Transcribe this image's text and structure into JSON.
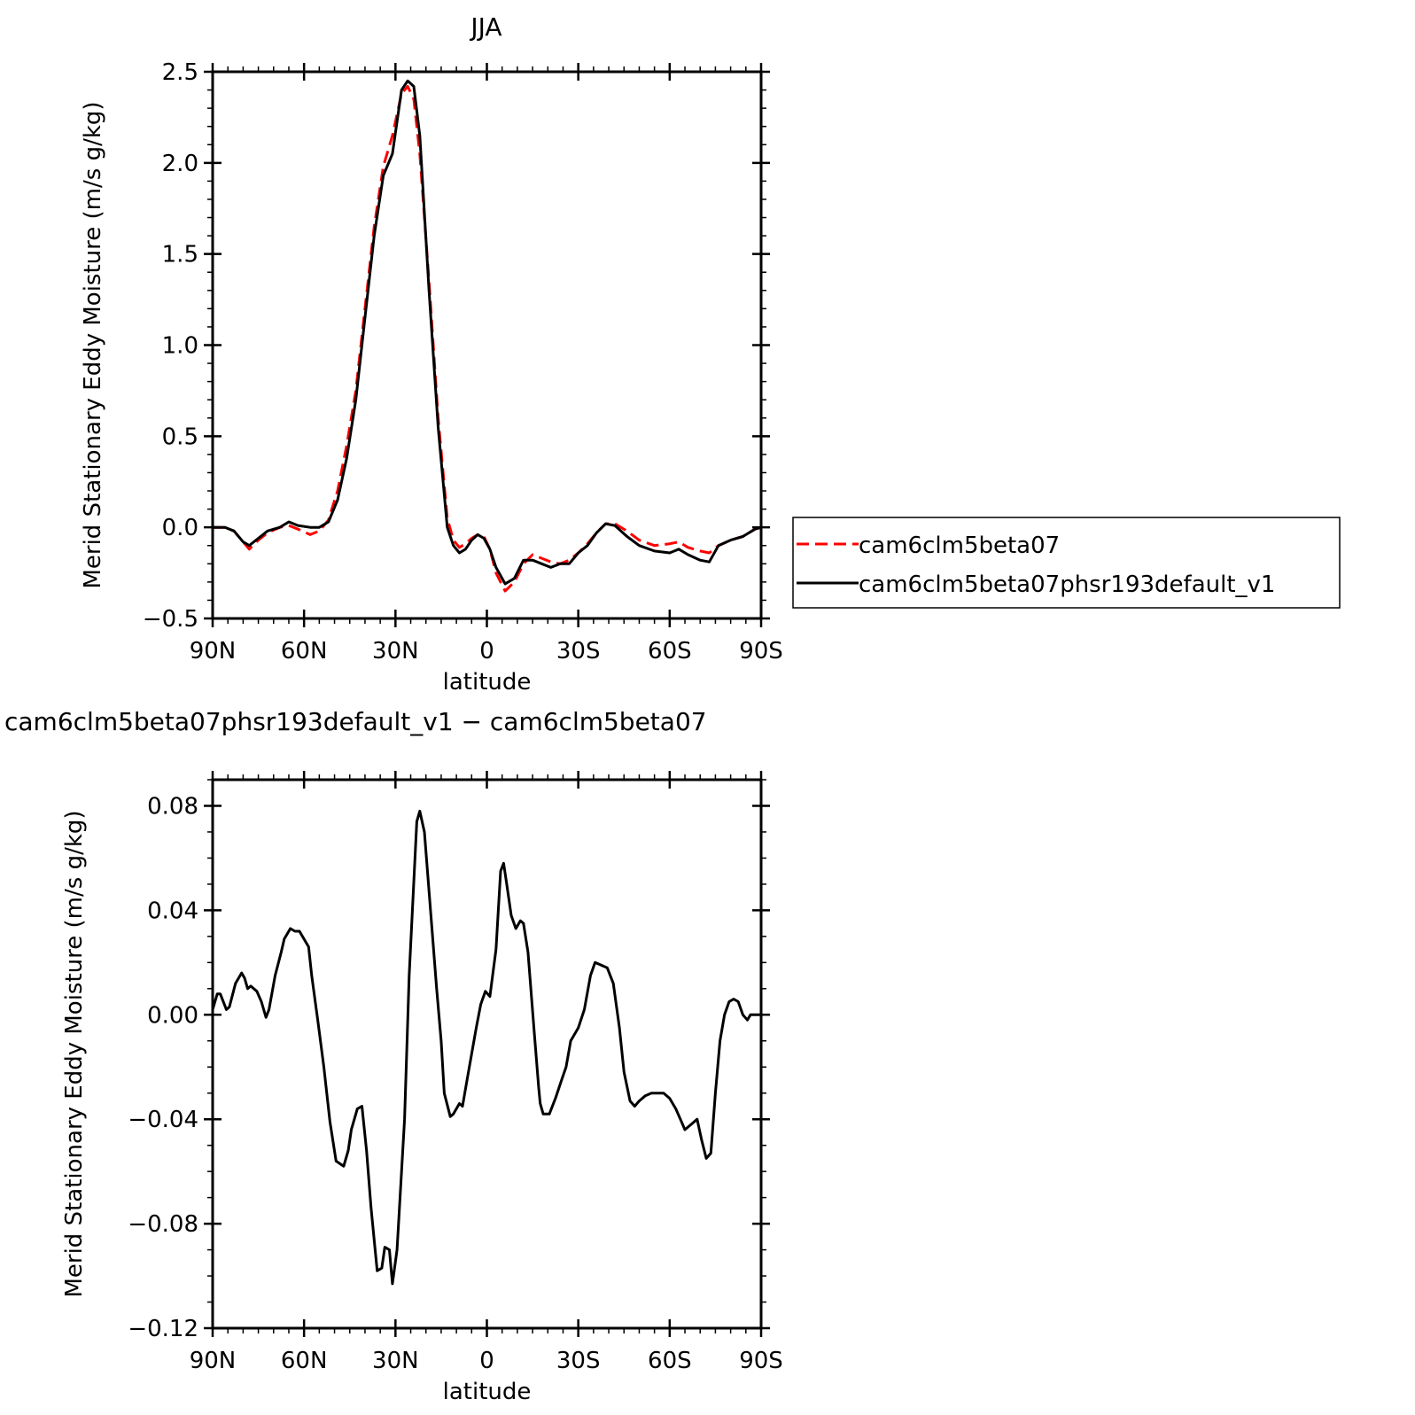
{
  "chart_data": [
    {
      "type": "line",
      "title": "JJA",
      "xlabel": "latitude",
      "ylabel": "Merid Stationary Eddy Moisture (m/s g/kg)",
      "xlim": [
        90,
        -90
      ],
      "ylim": [
        -0.5,
        2.5
      ],
      "x_ticks": [
        {
          "value": 90,
          "label": "90N"
        },
        {
          "value": 60,
          "label": "60N"
        },
        {
          "value": 30,
          "label": "30N"
        },
        {
          "value": 0,
          "label": "0"
        },
        {
          "value": -30,
          "label": "30S"
        },
        {
          "value": -60,
          "label": "60S"
        },
        {
          "value": -90,
          "label": "90S"
        }
      ],
      "y_ticks": [
        {
          "value": 2.5,
          "label": "2.5"
        },
        {
          "value": 2.0,
          "label": "2.0"
        },
        {
          "value": 1.5,
          "label": "1.5"
        },
        {
          "value": 1.0,
          "label": "1.0"
        },
        {
          "value": 0.5,
          "label": "0.5"
        },
        {
          "value": 0.0,
          "label": "0.0"
        },
        {
          "value": -0.5,
          "label": "−0.5"
        }
      ],
      "legend_position": "right",
      "series": [
        {
          "name": "cam6clm5beta07",
          "color": "#ff0000",
          "dash": "dashed",
          "x": [
            90,
            86,
            83,
            80,
            78,
            75,
            72,
            68,
            65,
            62,
            58,
            55,
            52,
            49,
            46,
            43,
            40,
            37,
            34,
            31,
            28,
            26,
            24,
            22,
            19,
            16,
            13,
            11,
            9,
            7,
            5,
            3,
            1,
            -1,
            -3,
            -6,
            -9,
            -12,
            -15,
            -18,
            -21,
            -24,
            -27,
            -30,
            -33,
            -36,
            -39,
            -42,
            -46,
            -50,
            -55,
            -60,
            -63,
            -66,
            -70,
            -73,
            -76,
            -80,
            -84,
            -88,
            -90
          ],
          "y": [
            0.0,
            0.0,
            -0.02,
            -0.08,
            -0.12,
            -0.07,
            -0.03,
            0.0,
            0.01,
            -0.01,
            -0.04,
            -0.02,
            0.04,
            0.2,
            0.45,
            0.75,
            1.2,
            1.65,
            1.98,
            2.15,
            2.38,
            2.42,
            2.35,
            2.05,
            1.35,
            0.6,
            0.05,
            -0.07,
            -0.11,
            -0.09,
            -0.06,
            -0.04,
            -0.05,
            -0.12,
            -0.25,
            -0.35,
            -0.3,
            -0.2,
            -0.15,
            -0.17,
            -0.19,
            -0.2,
            -0.18,
            -0.14,
            -0.09,
            -0.03,
            0.02,
            0.02,
            -0.02,
            -0.07,
            -0.1,
            -0.09,
            -0.08,
            -0.11,
            -0.13,
            -0.14,
            -0.1,
            -0.07,
            -0.05,
            -0.01,
            0.0
          ]
        },
        {
          "name": "cam6clm5beta07phsr193default_v1",
          "color": "#000000",
          "dash": "solid",
          "x": [
            90,
            86,
            83,
            80,
            78,
            75,
            72,
            68,
            65,
            62,
            58,
            55,
            52,
            49,
            46,
            43,
            40,
            37,
            34,
            31,
            28,
            26,
            24,
            22,
            19,
            16,
            13,
            11,
            9,
            7,
            5,
            3,
            1,
            -1,
            -3,
            -6,
            -9,
            -12,
            -15,
            -18,
            -21,
            -24,
            -27,
            -30,
            -33,
            -36,
            -39,
            -42,
            -46,
            -50,
            -55,
            -60,
            -63,
            -66,
            -70,
            -73,
            -76,
            -80,
            -84,
            -88,
            -90
          ],
          "y": [
            0.0,
            0.0,
            -0.02,
            -0.08,
            -0.1,
            -0.06,
            -0.02,
            0.0,
            0.03,
            0.01,
            0.0,
            0.0,
            0.03,
            0.15,
            0.38,
            0.7,
            1.15,
            1.6,
            1.93,
            2.05,
            2.4,
            2.45,
            2.42,
            2.15,
            1.3,
            0.55,
            0.0,
            -0.1,
            -0.14,
            -0.12,
            -0.07,
            -0.04,
            -0.06,
            -0.12,
            -0.22,
            -0.31,
            -0.28,
            -0.18,
            -0.18,
            -0.2,
            -0.22,
            -0.2,
            -0.2,
            -0.14,
            -0.1,
            -0.03,
            0.02,
            0.01,
            -0.05,
            -0.1,
            -0.13,
            -0.14,
            -0.12,
            -0.15,
            -0.18,
            -0.19,
            -0.1,
            -0.07,
            -0.05,
            -0.01,
            0.0
          ]
        }
      ]
    },
    {
      "type": "line",
      "title": "cam6clm5beta07phsr193default_v1 − cam6clm5beta07",
      "xlabel": "latitude",
      "ylabel": "Merid Stationary Eddy Moisture (m/s g/kg)",
      "xlim": [
        90,
        -90
      ],
      "ylim": [
        -0.12,
        0.09
      ],
      "x_ticks": [
        {
          "value": 90,
          "label": "90N"
        },
        {
          "value": 60,
          "label": "60N"
        },
        {
          "value": 30,
          "label": "30N"
        },
        {
          "value": 0,
          "label": "0"
        },
        {
          "value": -30,
          "label": "30S"
        },
        {
          "value": -60,
          "label": "60S"
        },
        {
          "value": -90,
          "label": "90S"
        }
      ],
      "y_ticks": [
        {
          "value": 0.08,
          "label": "0.08"
        },
        {
          "value": 0.04,
          "label": "0.04"
        },
        {
          "value": 0.0,
          "label": "0.00"
        },
        {
          "value": -0.04,
          "label": "−0.04"
        },
        {
          "value": -0.08,
          "label": "−0.08"
        },
        {
          "value": -0.12,
          "label": "−0.12"
        }
      ],
      "series": [
        {
          "color": "#000000",
          "dash": "solid",
          "x": [
            90,
            88.5,
            87.5,
            85.5,
            84.5,
            82.5,
            80.5,
            79.5,
            78.5,
            77.5,
            75.5,
            74,
            72.5,
            71.5,
            69.5,
            67.5,
            66.5,
            64.5,
            63,
            61.5,
            60.5,
            58.5,
            57.5,
            55.5,
            53.5,
            51.5,
            49.5,
            47,
            45.5,
            44.5,
            42.5,
            41,
            39.5,
            38,
            36,
            34.5,
            33.5,
            32,
            31,
            29.5,
            27,
            25.5,
            23,
            22,
            20.5,
            18.5,
            16.5,
            15,
            14,
            12,
            11,
            9,
            8,
            6.5,
            5,
            3.5,
            2,
            0.5,
            -1,
            -3,
            -4.5,
            -5.5,
            -6.5,
            -8,
            -9.5,
            -11,
            -12,
            -13.5,
            -15.5,
            -17,
            -17.5,
            -18.5,
            -20.5,
            -22.5,
            -24.5,
            -26,
            -27.5,
            -30,
            -32,
            -34,
            -35.5,
            -37.5,
            -39.5,
            -41.5,
            -43.5,
            -45,
            -47,
            -48.5,
            -50,
            -52,
            -54,
            -56,
            -58,
            -60,
            -62,
            -63.5,
            -65,
            -67,
            -69,
            -70.5,
            -72,
            -73.5,
            -75,
            -76.5,
            -78,
            -79.5,
            -81,
            -82.5,
            -84,
            -85.5,
            -86.5,
            -88,
            -89,
            -90
          ],
          "y": [
            0.002,
            0.008,
            0.008,
            0.002,
            0.003,
            0.012,
            0.016,
            0.014,
            0.01,
            0.011,
            0.009,
            0.005,
            -0.001,
            0.002,
            0.015,
            0.024,
            0.029,
            0.033,
            0.032,
            0.032,
            0.03,
            0.026,
            0.015,
            -0.002,
            -0.02,
            -0.041,
            -0.056,
            -0.058,
            -0.052,
            -0.044,
            -0.036,
            -0.035,
            -0.052,
            -0.074,
            -0.098,
            -0.097,
            -0.089,
            -0.09,
            -0.103,
            -0.09,
            -0.04,
            0.015,
            0.074,
            0.078,
            0.07,
            0.04,
            0.01,
            -0.01,
            -0.03,
            -0.039,
            -0.038,
            -0.034,
            -0.035,
            -0.025,
            -0.015,
            -0.005,
            0.004,
            0.009,
            0.007,
            0.025,
            0.055,
            0.058,
            0.05,
            0.038,
            0.033,
            0.036,
            0.035,
            0.024,
            -0.006,
            -0.028,
            -0.034,
            -0.038,
            -0.038,
            -0.032,
            -0.025,
            -0.02,
            -0.01,
            -0.005,
            0.002,
            0.015,
            0.02,
            0.019,
            0.018,
            0.012,
            -0.005,
            -0.022,
            -0.033,
            -0.035,
            -0.033,
            -0.031,
            -0.03,
            -0.03,
            -0.03,
            -0.032,
            -0.036,
            -0.04,
            -0.044,
            -0.042,
            -0.04,
            -0.048,
            -0.055,
            -0.053,
            -0.03,
            -0.01,
            0.0,
            0.005,
            0.006,
            0.005,
            0.0,
            -0.002,
            0.0,
            0.0,
            0.0,
            0.0
          ]
        }
      ]
    }
  ]
}
